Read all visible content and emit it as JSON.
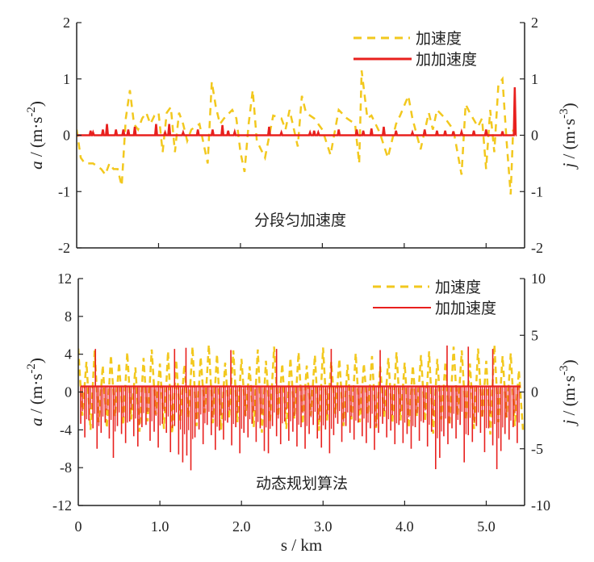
{
  "colors": {
    "acceleration": "#f2c81e",
    "jerk": "#e8201e",
    "axis": "#222222"
  },
  "chart_data": [
    {
      "type": "line",
      "annotation": "分段匀加速度",
      "xlim": [
        0,
        5.47
      ],
      "ylim": [
        -2,
        2
      ],
      "y2lim": [
        -2,
        2
      ],
      "yticks": [
        "2",
        "1",
        "0",
        "-1",
        "-2"
      ],
      "y2ticks": [
        "2",
        "1",
        "0",
        "-1",
        "-2"
      ],
      "ylabel": {
        "var": "a",
        "unit": " / (m·s",
        "exp": "-2",
        "close": ")"
      },
      "y2label": {
        "var": "j",
        "unit": " / (m·s",
        "exp": "-3",
        "close": ")"
      },
      "legend": {
        "position": "top-right",
        "entries": [
          "加速度",
          "加加速度"
        ]
      },
      "series": [
        {
          "name": "加速度",
          "axis": "left",
          "style": "dashed",
          "x": [
            0,
            0.05,
            0.1,
            0.2,
            0.3,
            0.35,
            0.4,
            0.45,
            0.5,
            0.55,
            0.6,
            0.65,
            0.7,
            0.75,
            0.8,
            0.85,
            0.9,
            0.95,
            1.0,
            1.05,
            1.1,
            1.15,
            1.2,
            1.25,
            1.3,
            1.35,
            1.4,
            1.5,
            1.6,
            1.65,
            1.7,
            1.75,
            1.8,
            1.9,
            1.95,
            2.0,
            2.05,
            2.1,
            2.15,
            2.2,
            2.3,
            2.4,
            2.5,
            2.55,
            2.6,
            2.7,
            2.75,
            2.8,
            2.9,
            3.0,
            3.1,
            3.2,
            3.3,
            3.4,
            3.45,
            3.48,
            3.55,
            3.6,
            3.7,
            3.8,
            3.9,
            3.95,
            4.05,
            4.1,
            4.2,
            4.3,
            4.35,
            4.4,
            4.5,
            4.6,
            4.7,
            4.75,
            4.8,
            4.9,
            4.95,
            5.0,
            5.05,
            5.1,
            5.15,
            5.2,
            5.25,
            5.3,
            5.33
          ],
          "y": [
            0.1,
            -0.4,
            -0.5,
            -0.5,
            -0.6,
            -0.7,
            -0.5,
            -0.6,
            -0.6,
            -0.9,
            0.3,
            0.8,
            0.2,
            0.1,
            0.3,
            0.4,
            0.2,
            0.35,
            0.4,
            -0.3,
            0.4,
            0.5,
            -0.3,
            0.4,
            0.2,
            -0.1,
            0.1,
            0.2,
            -0.5,
            0.95,
            0.5,
            0.2,
            0.3,
            0.45,
            0.3,
            -0.3,
            -0.65,
            0.2,
            0.8,
            -0.1,
            -0.4,
            0.35,
            0.3,
            0.1,
            0.45,
            -0.2,
            0.7,
            0.4,
            0.3,
            0.1,
            -0.35,
            0.45,
            0.3,
            0.2,
            -0.5,
            1.15,
            0.3,
            0.35,
            0.05,
            -0.4,
            0.2,
            0.35,
            0.7,
            0.3,
            -0.25,
            0.4,
            0.1,
            0.45,
            0.3,
            0.1,
            -0.7,
            0.55,
            0.4,
            0.15,
            0.3,
            -0.6,
            0.45,
            -0.3,
            0.9,
            1.0,
            -0.1,
            -1.05,
            0.1
          ]
        },
        {
          "name": "加加速度",
          "axis": "right",
          "style": "solid",
          "baseline": 0,
          "spikes_x": [
            0.17,
            0.2,
            0.32,
            0.37,
            0.48,
            0.57,
            0.63,
            0.71,
            0.97,
            1.08,
            1.13,
            1.3,
            1.48,
            1.66,
            1.78,
            1.85,
            1.93,
            2.35,
            2.5,
            2.85,
            2.9,
            2.95,
            3.2,
            3.42,
            3.5,
            3.6,
            3.75,
            3.9,
            4.1,
            4.25,
            4.4,
            4.5,
            4.6,
            4.7,
            4.85,
            5.0,
            5.2,
            5.35
          ],
          "spikes_y": [
            0.08,
            0.05,
            0.1,
            0.2,
            0.1,
            0.1,
            0.1,
            0.15,
            0.2,
            0.05,
            0.2,
            0.05,
            0.1,
            0.1,
            0.18,
            0.08,
            0.06,
            0.15,
            0.05,
            0.05,
            0.08,
            0.05,
            0.1,
            0.1,
            0.08,
            0.12,
            0.15,
            0.08,
            0.05,
            0.1,
            0.08,
            0.08,
            0.07,
            0.06,
            0.08,
            0.1,
            0.07,
            0.85
          ]
        }
      ]
    },
    {
      "type": "line",
      "annotation": "动态规划算法",
      "xlabel": "s / km",
      "xlim": [
        0,
        5.47
      ],
      "xticks": [
        "0",
        "1.0",
        "2.0",
        "3.0",
        "4.0",
        "5.0"
      ],
      "ylim": [
        -12,
        12
      ],
      "y2lim": [
        -10,
        10
      ],
      "yticks": [
        "12",
        "8",
        "4",
        "0",
        "-4",
        "-8",
        "-12"
      ],
      "y2ticks": [
        "10",
        "5",
        "0",
        "-5",
        "-10"
      ],
      "ylabel": {
        "var": "a",
        "unit": " / (m·s",
        "exp": "-2",
        "close": ")"
      },
      "y2label": {
        "var": "j",
        "unit": " / (m·s",
        "exp": "-3",
        "close": ")"
      },
      "legend": {
        "position": "top-right",
        "entries": [
          "加速度",
          "加加速度"
        ]
      },
      "series": [
        {
          "name": "加速度",
          "axis": "left",
          "style": "dashed",
          "x_step": 0.1,
          "high": [
            4.6,
            3.2,
            4.4,
            2.8,
            3.9,
            3.1,
            4.2,
            2.6,
            3.6,
            4.5,
            3.0,
            4.3,
            3.4,
            2.9,
            4.8,
            3.7,
            5.0,
            4.0,
            3.1,
            4.4,
            3.5,
            2.7,
            4.5,
            3.3,
            4.8,
            3.0,
            3.6,
            4.2,
            2.8,
            3.9,
            4.7,
            3.2,
            3.5,
            2.9,
            4.1,
            3.0,
            3.8,
            2.7,
            3.6,
            4.2,
            3.1,
            2.8,
            3.9,
            4.3,
            3.5,
            3.2,
            4.8,
            4.4,
            3.0,
            4.6,
            3.3,
            5.0,
            3.8,
            4.1,
            2.3
          ],
          "low": [
            -2.5,
            -4.0,
            -3.2,
            -3.8,
            -2.6,
            -3.5,
            -2.9,
            -4.2,
            -3.1,
            -2.4,
            -3.9,
            -4.4,
            -3.0,
            -2.7,
            -3.6,
            -2.2,
            -3.3,
            -4.0,
            -2.8,
            -3.2,
            -2.5,
            -3.7,
            -4.3,
            -3.1,
            -2.6,
            -3.9,
            -2.8,
            -3.4,
            -2.5,
            -4.1,
            -3.0,
            -2.3,
            -3.6,
            -2.9,
            -3.2,
            -2.4,
            -3.8,
            -2.7,
            -3.3,
            -3.0,
            -3.8,
            -2.6,
            -3.1,
            -4.4,
            -2.9,
            -3.5,
            -2.5,
            -3.0,
            -3.9,
            -2.8,
            -4.5,
            -3.2,
            -2.7,
            -3.6,
            -4.0
          ]
        },
        {
          "name": "加加速度",
          "axis": "right",
          "style": "solid",
          "baseline": 0.5,
          "x_step": 0.05,
          "dips": [
            -2.8,
            -4.0,
            -2.5,
            -3.2,
            -5.0,
            -3.6,
            -2.7,
            -4.1,
            -5.8,
            -3.0,
            -3.7,
            -4.5,
            -2.6,
            -3.9,
            -4.8,
            -3.1,
            -2.9,
            -4.3,
            -3.5,
            -4.9,
            -2.8,
            -3.6,
            -5.3,
            -3.0,
            -5.5,
            -6.2,
            -5.6,
            -6.9,
            -4.0,
            -3.3,
            -4.6,
            -2.9,
            -3.8,
            -5.1,
            -3.4,
            -4.2,
            -2.7,
            -4.7,
            -3.1,
            -5.4,
            -3.6,
            -4.0,
            -2.8,
            -4.4,
            -3.2,
            -5.2,
            -5.4,
            -3.0,
            -3.9,
            -4.6,
            -2.6,
            -4.3,
            -3.5,
            -4.8,
            -3.1,
            -5.0,
            -3.7,
            -2.9,
            -4.1,
            -4.9,
            -3.3,
            -5.4,
            -3.8,
            -2.8,
            -4.4,
            -3.0,
            -3.6,
            -4.2,
            -2.7,
            -3.9,
            -4.5,
            -3.2,
            -5.1,
            -3.6,
            -2.8,
            -4.0,
            -3.4,
            -4.6,
            -2.9,
            -4.5,
            -3.7,
            -5.0,
            -3.1,
            -4.3,
            -2.7,
            -4.8,
            -3.5,
            -6.8,
            -5.8,
            -3.9,
            -4.6,
            -3.2,
            -4.1,
            -2.9,
            -6.2,
            -3.8,
            -4.4,
            -3.0,
            -3.6,
            -5.3,
            -3.2,
            -4.7,
            -6.8,
            -5.2,
            -3.7,
            -4.2,
            -3.1,
            -4.5
          ],
          "up_spikes_x": [
            0.21,
            1.18,
            1.32,
            1.87,
            2.43,
            3.1,
            3.7,
            4.52,
            4.78,
            5.08
          ],
          "up_spikes_y": [
            3.8,
            3.8,
            3.9,
            3.7,
            3.8,
            3.8,
            3.7,
            4.1,
            4.0,
            3.8
          ]
        }
      ]
    }
  ]
}
